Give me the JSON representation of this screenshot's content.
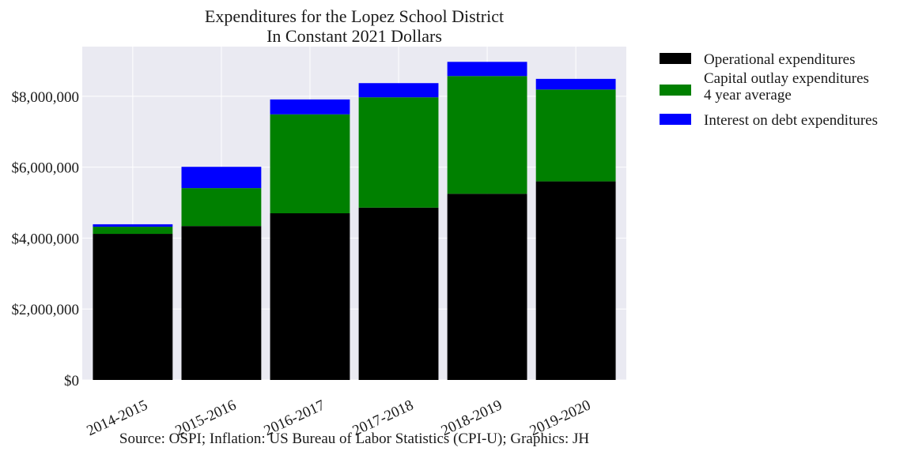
{
  "chart_data": {
    "type": "bar",
    "stacked": true,
    "title": "Expenditures for the Lopez School District",
    "subtitle": "In Constant 2021 Dollars",
    "categories": [
      "2014-2015",
      "2015-2016",
      "2016-2017",
      "2017-2018",
      "2018-2019",
      "2019-2020"
    ],
    "series": [
      {
        "name": "Operational expenditures",
        "color": "#000000",
        "values": [
          4120000,
          4340000,
          4700000,
          4860000,
          5250000,
          5600000
        ]
      },
      {
        "name": "Capital outlay expenditures\n4 year average",
        "name_lines": [
          "Capital outlay expenditures",
          "4 year average"
        ],
        "color": "#008000",
        "values": [
          200000,
          1070000,
          2790000,
          3110000,
          3320000,
          2590000
        ]
      },
      {
        "name": "Interest on debt expenditures",
        "color": "#0000ff",
        "values": [
          70000,
          600000,
          420000,
          400000,
          400000,
          300000
        ]
      }
    ],
    "ylim": [
      0,
      9400000
    ],
    "yticks": [
      0,
      2000000,
      4000000,
      6000000,
      8000000
    ],
    "ytick_labels": [
      "$0",
      "$2,000,000",
      "$4,000,000",
      "$6,000,000",
      "$8,000,000"
    ],
    "grid": true,
    "legend_position": "outside-top-right",
    "source": "Source: OSPI; Inflation: US Bureau of Labor Statistics (CPI-U); Graphics: JH"
  }
}
